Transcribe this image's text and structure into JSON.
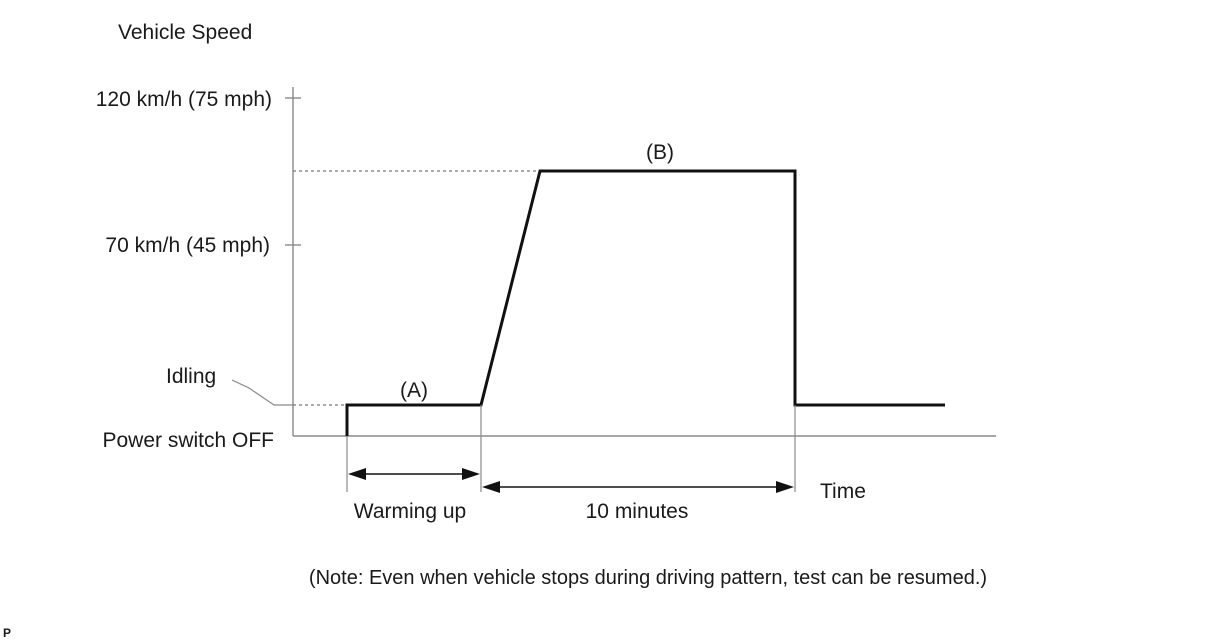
{
  "y_axis_title": "Vehicle Speed",
  "x_axis_title": "Time",
  "y_levels": {
    "upper": "120 km/h (75 mph)",
    "middle": "70 km/h (45 mph)",
    "idle": "Idling",
    "off": "Power switch OFF"
  },
  "segments": {
    "a_label": "(A)",
    "b_label": "(B)"
  },
  "durations": {
    "warm_up": "Warming up",
    "cruise": "10 minutes"
  },
  "note": "(Note: Even when vehicle stops during driving pattern, test can be resumed.)",
  "corner_mark": "P",
  "colors": {
    "line": "#111111",
    "axis": "#8a8a8a",
    "text": "#1a1a1a",
    "background": "#ffffff"
  }
}
